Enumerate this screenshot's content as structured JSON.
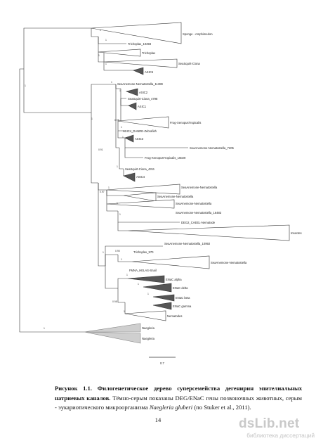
{
  "tree": {
    "taxa": [
      "Sponge - Amphimedon",
      "Trichoplax_10393",
      "Trichoplax",
      "SeaSquirt-Ciona",
      "ASIC5",
      "SeaAnemone-Nematostella_11389",
      "ASIC2",
      "SeaSquirt-Ciona_4798",
      "ASIC1",
      "Frog-XenopusTropicalis",
      "ASIC4_DANRE-Zebrafish",
      "ASIC3",
      "SeaAnemone-Nematostella_7205",
      "Frog-XenopusTropicalis_16029",
      "SeaSquirt-Ciona_4311",
      "ASIC4",
      "SeaAnemone-Nematostella",
      "SeaAnemone-Nematostella",
      "SeaAnemone-Nematostella",
      "SeaAnemone-Nematostella_16483",
      "DEG2_CAEEL-Nematode",
      "Insectes",
      "SeaAnemone-Nematostella_10992",
      "Trichoplax_970",
      "SeaAnemone-Nematostella",
      "FMNA_HELAS-Snail",
      "ENaC alpha",
      "ENaC delta",
      "ENaC beta",
      "ENaC gamma",
      "Nematodes",
      "Naegleria",
      "Naegleria"
    ],
    "support": [
      "1",
      "1",
      "1",
      "1",
      "1",
      "1",
      "1",
      "1",
      "0.98",
      "1",
      "1",
      "0.91",
      "1",
      "0.97",
      "1",
      "1",
      "1",
      "1",
      "0.95",
      "1",
      "1",
      "1",
      "0.98",
      "1",
      "1",
      "1",
      "1",
      "1",
      "1",
      "1",
      "0.97",
      "1",
      "0.99",
      "1",
      "1"
    ],
    "scale_label": "0.7",
    "colors": {
      "dark_triangle": "#555555",
      "gray_triangle": "#cfcfcf",
      "line": "#333333"
    }
  },
  "caption": {
    "bold": "Рисунок 1.1. Филогенетическое дерево суперсемейства дегенирин эпителиальных натриевых каналов.",
    "text1": " Тёмно-серым показаны DEG/ENaC гены позвоночных животных, серым - эукариотического микроорганизма ",
    "italic": "Naegleria gluberi",
    "text2": " (по Stuker et al., 2011)."
  },
  "page_number": "14",
  "watermark": {
    "logo": "dsLib.net",
    "subtitle": "библиотека диссертаций"
  }
}
